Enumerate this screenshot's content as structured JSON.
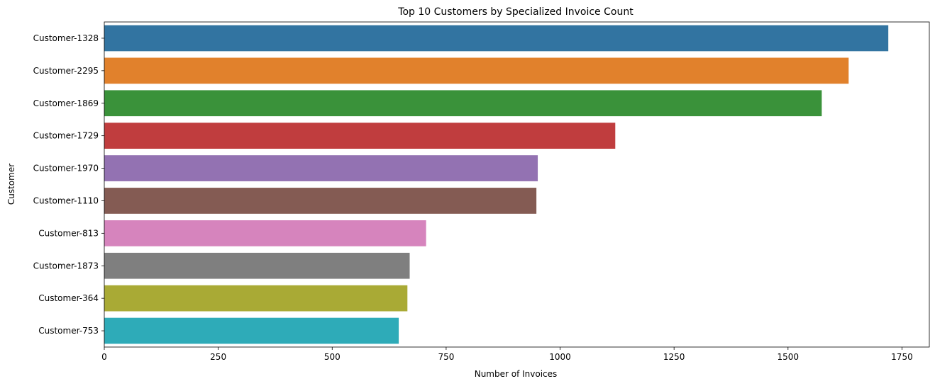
{
  "chart_data": {
    "type": "bar",
    "orientation": "horizontal",
    "title": "Top 10 Customers by Specialized Invoice Count",
    "xlabel": "Number of Invoices",
    "ylabel": "Customer",
    "xlim": [
      0,
      1810
    ],
    "xticks": [
      0,
      250,
      500,
      750,
      1000,
      1250,
      1500,
      1750
    ],
    "grid": false,
    "legend": "none",
    "categories": [
      "Customer-1328",
      "Customer-2295",
      "Customer-1869",
      "Customer-1729",
      "Customer-1970",
      "Customer-1110",
      "Customer-813",
      "Customer-1873",
      "Customer-364",
      "Customer-753"
    ],
    "values": [
      1720,
      1633,
      1574,
      1121,
      951,
      948,
      706,
      670,
      665,
      646
    ],
    "colors": [
      "#3274a1",
      "#e1812c",
      "#3a923a",
      "#c03d3e",
      "#9372b2",
      "#845b53",
      "#d684bd",
      "#7f7f7f",
      "#a9aa35",
      "#2eabb8"
    ]
  }
}
